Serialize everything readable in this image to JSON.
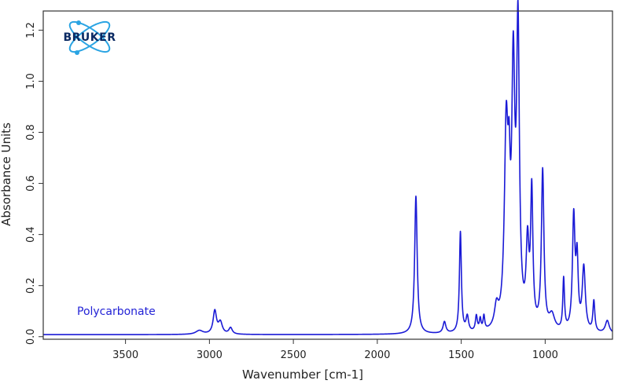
{
  "chart_data": {
    "type": "line",
    "title": "",
    "xlabel": "Wavenumber [cm-1]",
    "ylabel": "Absorbance Units",
    "xlim": [
      3990,
      599
    ],
    "x_reversed": true,
    "ylim": [
      -0.01,
      1.275
    ],
    "x_ticks": [
      3500,
      3000,
      2500,
      2000,
      1500,
      1000
    ],
    "y_ticks": [
      0.0,
      0.2,
      0.4,
      0.6,
      0.8,
      1.0,
      1.2
    ],
    "x_tick_labels": [
      "3500",
      "3000",
      "2500",
      "2000",
      "1500",
      "1000"
    ],
    "y_tick_labels": [
      "0.0",
      "0.2",
      "0.4",
      "0.6",
      "0.8",
      "1.0",
      "1.2"
    ],
    "grid": false,
    "annotation": "Polycarbonate",
    "series": [
      {
        "name": "Polycarbonate",
        "color": "#1a1ad6",
        "baseline": 0.008,
        "peaks": [
          [
            3060,
            0.015,
            25
          ],
          [
            2968,
            0.09,
            12
          ],
          [
            2935,
            0.045,
            14
          ],
          [
            2874,
            0.025,
            12
          ],
          [
            1770,
            0.54,
            9
          ],
          [
            1600,
            0.045,
            10
          ],
          [
            1505,
            0.395,
            7
          ],
          [
            1464,
            0.06,
            9
          ],
          [
            1410,
            0.06,
            7
          ],
          [
            1387,
            0.045,
            6
          ],
          [
            1365,
            0.055,
            6
          ],
          [
            1290,
            0.08,
            14
          ],
          [
            1232,
            0.75,
            13
          ],
          [
            1215,
            0.37,
            8
          ],
          [
            1190,
            0.95,
            11
          ],
          [
            1162,
            1.13,
            10
          ],
          [
            1105,
            0.31,
            10
          ],
          [
            1080,
            0.52,
            8
          ],
          [
            1015,
            0.62,
            9
          ],
          [
            960,
            0.06,
            20
          ],
          [
            890,
            0.2,
            6
          ],
          [
            830,
            0.44,
            9
          ],
          [
            810,
            0.26,
            8
          ],
          [
            770,
            0.25,
            11
          ],
          [
            710,
            0.12,
            7
          ],
          [
            630,
            0.05,
            14
          ]
        ]
      }
    ]
  },
  "logo": {
    "text": "BRUKER"
  },
  "colors": {
    "line": "#1a1ad6",
    "annotation": "#2323d6",
    "logo_blue": "#2aa4e3"
  }
}
